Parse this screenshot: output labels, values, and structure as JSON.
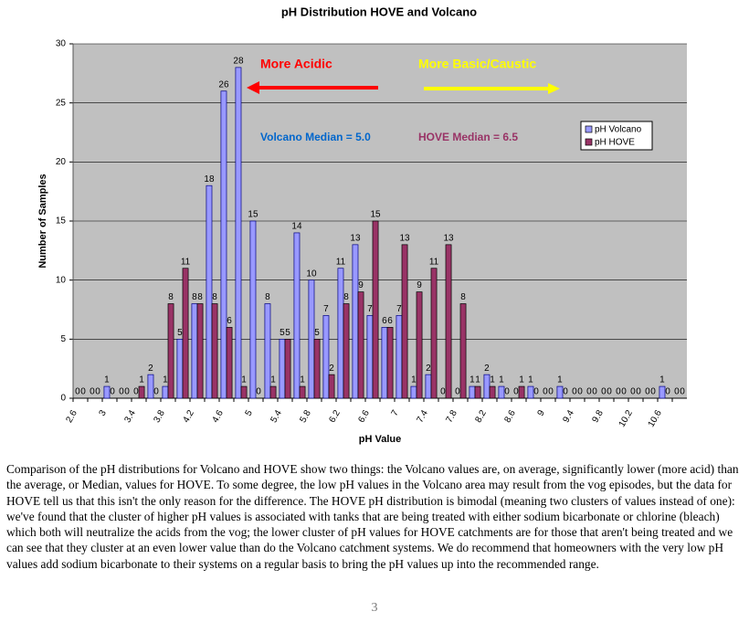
{
  "chart_data": {
    "type": "bar",
    "title": "pH Distribution HOVE and Volcano",
    "xlabel": "pH Value",
    "ylabel": "Number of Samples",
    "categories": [
      "2.6",
      null,
      "3",
      null,
      "3.4",
      null,
      "3.8",
      null,
      "4.2",
      null,
      "4.6",
      null,
      "5",
      null,
      "5.4",
      null,
      "5.8",
      null,
      "6.2",
      null,
      "6.6",
      null,
      "7",
      null,
      "7.4",
      null,
      "7.8",
      null,
      "8.2",
      null,
      "8.6",
      null,
      "9",
      null,
      "9.4",
      null,
      "9.8",
      null,
      "10.2",
      null,
      "10.6",
      null
    ],
    "series": [
      {
        "name": "pH Volcano",
        "color": "#9999ff",
        "values": [
          0,
          0,
          1,
          0,
          0,
          2,
          1,
          5,
          8,
          18,
          26,
          28,
          15,
          8,
          5,
          14,
          10,
          7,
          11,
          13,
          7,
          6,
          7,
          1,
          2,
          0,
          0,
          1,
          2,
          1,
          0,
          1,
          0,
          1,
          0,
          0,
          0,
          0,
          0,
          0,
          1,
          0
        ]
      },
      {
        "name": "pH HOVE",
        "color": "#993366",
        "values": [
          0,
          0,
          0,
          0,
          1,
          0,
          8,
          11,
          8,
          8,
          6,
          1,
          0,
          1,
          5,
          1,
          5,
          2,
          8,
          9,
          15,
          6,
          13,
          9,
          11,
          13,
          8,
          1,
          1,
          0,
          1,
          0,
          0,
          0,
          0,
          0,
          0,
          0,
          0,
          0,
          0,
          0
        ]
      }
    ],
    "ylim": [
      0,
      30
    ],
    "yticks": [
      0,
      5,
      10,
      15,
      20,
      25,
      30
    ],
    "grid": true,
    "legend": "right",
    "annotations": [
      {
        "text": "More Acidic",
        "color": "#ff0000"
      },
      {
        "text": "More Basic/Caustic",
        "color": "#ffff00"
      },
      {
        "text": "Volcano Median = 5.0",
        "color": "#0066cc"
      },
      {
        "text": "HOVE Median = 6.5",
        "color": "#993366"
      }
    ]
  },
  "body": {
    "paragraph": "Comparison of the pH distributions for Volcano and HOVE show two things: the Volcano values are, on average, significantly lower (more acid) than the average, or Median, values for HOVE.  To some degree, the low pH values in the Volcano area may result from the vog episodes, but the data for HOVE tell us that this isn't the only reason for the difference.  The HOVE pH distribution is bimodal (meaning two clusters of values instead of one): we've found that the cluster of higher pH values is associated with tanks that are being treated with either sodium bicarbonate or chlorine (bleach) which both will neutralize the acids from the vog; the lower cluster of pH values for HOVE catchments are for those that aren't being treated and we can see that they cluster at an even lower value than do the Volcano catchment systems.  We do recommend that homeowners with the very low pH values add sodium bicarbonate to their systems on a regular basis to bring the pH values up into the recommended range.",
    "page_number": "3"
  }
}
